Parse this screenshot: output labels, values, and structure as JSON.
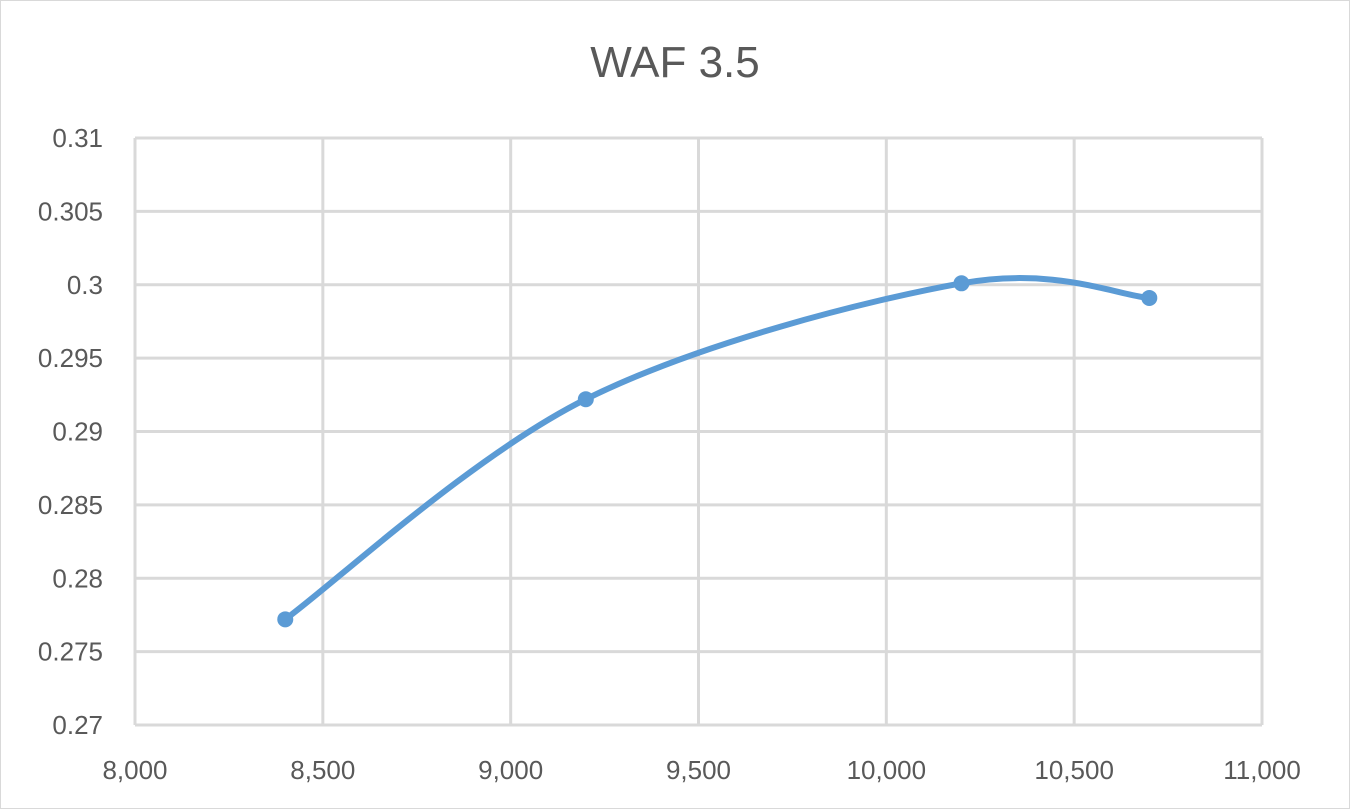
{
  "chart_data": {
    "type": "line",
    "title": "WAF 3.5",
    "xlabel": "",
    "ylabel": "",
    "xlim": [
      8000,
      11000
    ],
    "ylim": [
      0.27,
      0.31
    ],
    "x_ticks": [
      8000,
      8500,
      9000,
      9500,
      10000,
      10500,
      11000
    ],
    "x_tick_labels": [
      "8,000",
      "8,500",
      "9,000",
      "9,500",
      "10,000",
      "10,500",
      "11,000"
    ],
    "y_ticks": [
      0.27,
      0.275,
      0.28,
      0.285,
      0.29,
      0.295,
      0.3,
      0.305,
      0.31
    ],
    "y_tick_labels": [
      "0.27",
      "0.275",
      "0.28",
      "0.285",
      "0.29",
      "0.295",
      "0.3",
      "0.305",
      "0.31"
    ],
    "grid": true,
    "smooth": true,
    "series": [
      {
        "color": "#5b9bd5",
        "x": [
          8400,
          9200,
          10200,
          10700
        ],
        "y": [
          0.2772,
          0.2922,
          0.3001,
          0.2991
        ]
      }
    ]
  }
}
